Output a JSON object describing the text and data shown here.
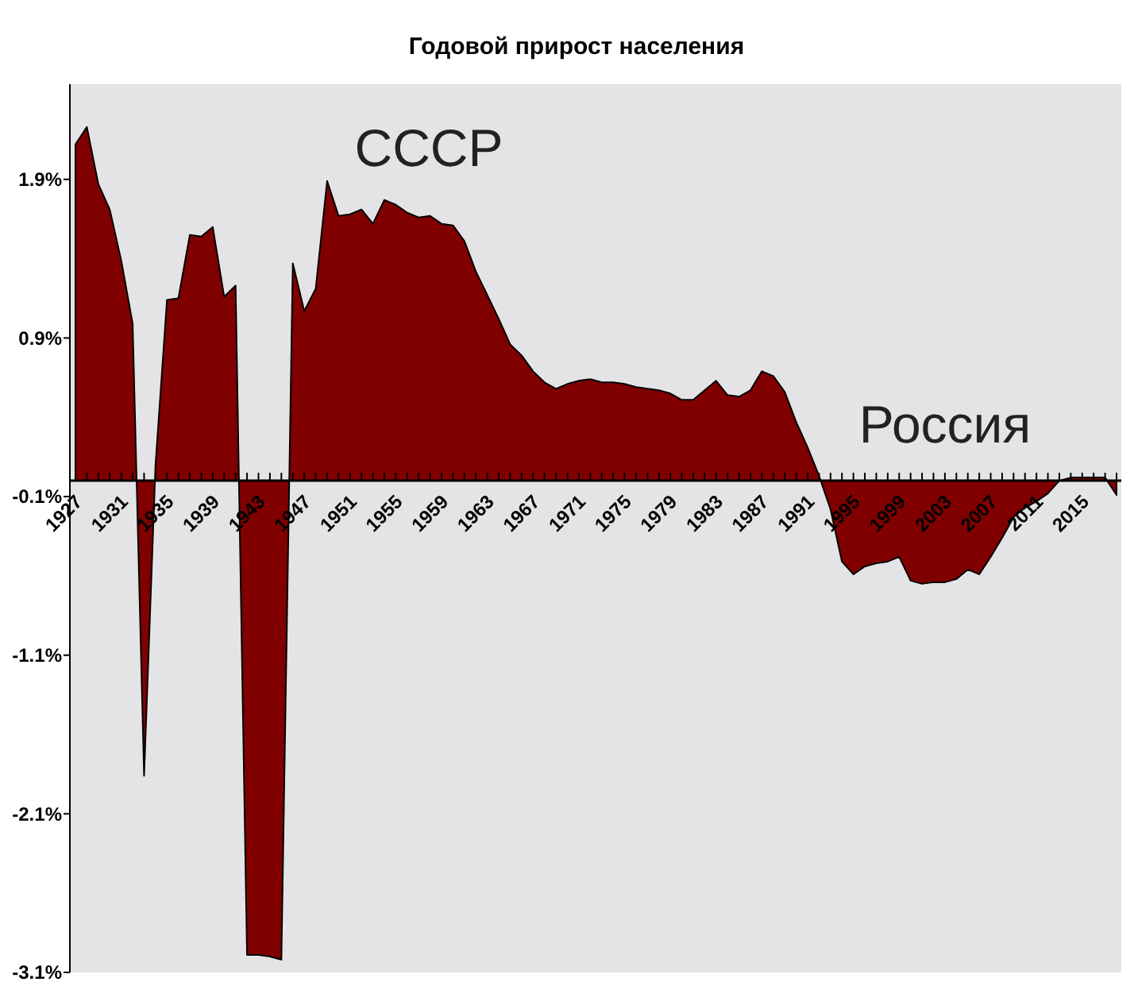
{
  "chart_data": {
    "type": "area",
    "title": "Годовой прирост населения",
    "x": [
      1927,
      1928,
      1929,
      1930,
      1931,
      1932,
      1933,
      1934,
      1935,
      1936,
      1937,
      1938,
      1939,
      1940,
      1941,
      1942,
      1943,
      1944,
      1945,
      1946,
      1947,
      1948,
      1949,
      1950,
      1951,
      1952,
      1953,
      1954,
      1955,
      1956,
      1957,
      1958,
      1959,
      1960,
      1961,
      1962,
      1963,
      1964,
      1965,
      1966,
      1967,
      1968,
      1969,
      1970,
      1971,
      1972,
      1973,
      1974,
      1975,
      1976,
      1977,
      1978,
      1979,
      1980,
      1981,
      1982,
      1983,
      1984,
      1985,
      1986,
      1987,
      1988,
      1989,
      1990,
      1991,
      1992,
      1993,
      1994,
      1995,
      1996,
      1997,
      1998,
      1999,
      2000,
      2001,
      2002,
      2003,
      2004,
      2005,
      2006,
      2007,
      2008,
      2009,
      2010,
      2011,
      2012,
      2013,
      2014,
      2015,
      2016,
      2017,
      2018
    ],
    "series": [
      {
        "color": "#800000",
        "values": [
          2.12,
          2.23,
          1.87,
          1.71,
          1.39,
          0.99,
          -1.86,
          0.1,
          1.14,
          1.15,
          1.55,
          1.54,
          1.6,
          1.16,
          1.23,
          -2.99,
          -2.99,
          -3.0,
          -3.02,
          1.37,
          1.07,
          1.21,
          1.89,
          1.67,
          1.68,
          1.71,
          1.62,
          1.77,
          1.74,
          1.69,
          1.66,
          1.67,
          1.62,
          1.61,
          1.51,
          1.32,
          1.17,
          1.02,
          0.86,
          0.79,
          0.69,
          0.62,
          0.58,
          0.61,
          0.63,
          0.64,
          0.62,
          0.62,
          0.61,
          0.59,
          0.58,
          0.57,
          0.55,
          0.51,
          0.51,
          0.57,
          0.63,
          0.54,
          0.53,
          0.57,
          0.69,
          0.66,
          0.56,
          0.37,
          0.21,
          0.03,
          -0.18,
          -0.51,
          -0.59,
          -0.54,
          -0.52,
          -0.51,
          -0.48,
          -0.63,
          -0.65,
          -0.64,
          -0.64,
          -0.62,
          -0.56,
          -0.59,
          -0.48,
          -0.36,
          -0.23,
          -0.17,
          -0.13,
          -0.08,
          0.0,
          0.02,
          0.02,
          0.02,
          0.02,
          -0.09
        ]
      }
    ],
    "xlim": [
      1927,
      2018
    ],
    "xticks": [
      1927,
      {
        "value": 1928,
        "label": null
      },
      {
        "value": 1929,
        "label": null
      },
      {
        "value": 1930,
        "label": null
      },
      1931,
      {
        "value": 1932,
        "label": null
      },
      {
        "value": 1933,
        "label": null
      },
      {
        "value": 1934,
        "label": null
      },
      1935,
      {
        "value": 1936,
        "label": null
      },
      {
        "value": 1937,
        "label": null
      },
      {
        "value": 1938,
        "label": null
      },
      1939,
      {
        "value": 1940,
        "label": null
      },
      {
        "value": 1941,
        "label": null
      },
      {
        "value": 1942,
        "label": null
      },
      1943,
      {
        "value": 1944,
        "label": null
      },
      {
        "value": 1945,
        "label": null
      },
      {
        "value": 1946,
        "label": null
      },
      1947,
      {
        "value": 1948,
        "label": null
      },
      {
        "value": 1949,
        "label": null
      },
      {
        "value": 1950,
        "label": null
      },
      1951,
      {
        "value": 1952,
        "label": null
      },
      {
        "value": 1953,
        "label": null
      },
      {
        "value": 1954,
        "label": null
      },
      1955,
      {
        "value": 1956,
        "label": null
      },
      {
        "value": 1957,
        "label": null
      },
      {
        "value": 1958,
        "label": null
      },
      1959,
      {
        "value": 1960,
        "label": null
      },
      {
        "value": 1961,
        "label": null
      },
      {
        "value": 1962,
        "label": null
      },
      1963,
      {
        "value": 1964,
        "label": null
      },
      {
        "value": 1965,
        "label": null
      },
      {
        "value": 1966,
        "label": null
      },
      1967,
      {
        "value": 1968,
        "label": null
      },
      {
        "value": 1969,
        "label": null
      },
      {
        "value": 1970,
        "label": null
      },
      1971,
      {
        "value": 1972,
        "label": null
      },
      {
        "value": 1973,
        "label": null
      },
      {
        "value": 1974,
        "label": null
      },
      1975,
      {
        "value": 1976,
        "label": null
      },
      {
        "value": 1977,
        "label": null
      },
      {
        "value": 1978,
        "label": null
      },
      1979,
      {
        "value": 1980,
        "label": null
      },
      {
        "value": 1981,
        "label": null
      },
      {
        "value": 1982,
        "label": null
      },
      1983,
      {
        "value": 1984,
        "label": null
      },
      {
        "value": 1985,
        "label": null
      },
      {
        "value": 1986,
        "label": null
      },
      1987,
      {
        "value": 1988,
        "label": null
      },
      {
        "value": 1989,
        "label": null
      },
      {
        "value": 1990,
        "label": null
      },
      1991,
      {
        "value": 1992,
        "label": null
      },
      {
        "value": 1993,
        "label": null
      },
      {
        "value": 1994,
        "label": null
      },
      1995,
      {
        "value": 1996,
        "label": null
      },
      {
        "value": 1997,
        "label": null
      },
      {
        "value": 1998,
        "label": null
      },
      1999,
      {
        "value": 2000,
        "label": null
      },
      {
        "value": 2001,
        "label": null
      },
      {
        "value": 2002,
        "label": null
      },
      2003,
      {
        "value": 2004,
        "label": null
      },
      {
        "value": 2005,
        "label": null
      },
      {
        "value": 2006,
        "label": null
      },
      2007,
      {
        "value": 2008,
        "label": null
      },
      {
        "value": 2009,
        "label": null
      },
      {
        "value": 2010,
        "label": null
      },
      2011,
      {
        "value": 2012,
        "label": null
      },
      {
        "value": 2013,
        "label": null
      },
      {
        "value": 2014,
        "label": null
      },
      2015,
      {
        "value": 2016,
        "label": null
      },
      {
        "value": 2017,
        "label": null
      },
      {
        "value": 2018,
        "label": null
      }
    ],
    "ylim": [
      -3.1,
      2.5
    ],
    "yticks": [
      {
        "value": -3.1,
        "label": "-3.1%"
      },
      {
        "value": -2.1,
        "label": "-2.1%"
      },
      {
        "value": -1.1,
        "label": "-1.1%"
      },
      {
        "value": -0.1,
        "label": "-0.1%"
      },
      {
        "value": 0.9,
        "label": "0.9%"
      },
      {
        "value": 1.9,
        "label": "1.9%"
      }
    ],
    "annotations": [
      "СССР",
      "Россия"
    ],
    "grid": false
  }
}
